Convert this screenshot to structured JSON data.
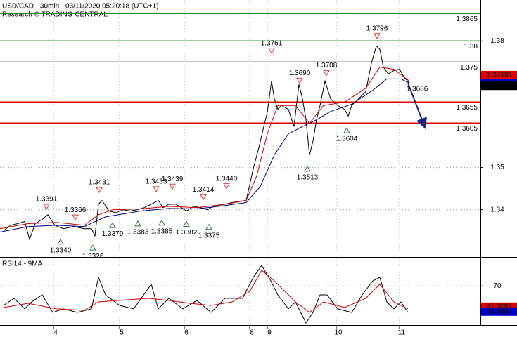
{
  "header": {
    "title": "USD/CAD - 30min - 03/11/2020 05:20:18 (UTC+1)",
    "subtitle": "Research © TRADING CENTRAL"
  },
  "chart_data": [
    {
      "type": "line",
      "xlim": [
        0,
        683
      ],
      "ylim": [
        1.3288,
        1.3897
      ],
      "xticks": [
        {
          "value": 76,
          "label": "4"
        },
        {
          "value": 170,
          "label": "5"
        },
        {
          "value": 262,
          "label": "6"
        },
        {
          "value": 355,
          "label": "8"
        },
        {
          "value": 380,
          "label": "9"
        },
        {
          "value": 478,
          "label": "10"
        },
        {
          "value": 568,
          "label": "11"
        }
      ],
      "yticks": [
        1.34,
        1.35,
        1.38
      ],
      "grid": true,
      "series": [
        {
          "color": "#000000",
          "x": [
            5,
            15,
            25,
            35,
            42,
            50,
            60,
            68,
            78,
            90,
            105,
            120,
            130,
            135,
            140,
            145,
            155,
            165,
            175,
            185,
            195,
            205,
            215,
            225,
            232,
            240,
            250,
            258,
            265,
            275,
            285,
            295,
            300,
            310,
            320,
            330,
            340,
            350,
            360,
            368,
            375,
            380,
            386,
            390,
            395,
            400,
            410,
            418,
            425,
            430,
            435,
            440,
            445,
            450,
            455,
            462,
            470,
            480,
            490,
            495,
            500,
            510,
            520,
            528,
            535,
            540,
            545,
            552,
            560,
            568,
            575,
            582
          ],
          "values": [
            1.335,
            1.3363,
            1.3367,
            1.3372,
            1.333,
            1.3367,
            1.3377,
            1.3388,
            1.3363,
            1.3355,
            1.336,
            1.3355,
            1.3355,
            1.3338,
            1.3413,
            1.3422,
            1.3397,
            1.3393,
            1.34,
            1.3397,
            1.34,
            1.3405,
            1.3413,
            1.3422,
            1.3405,
            1.3413,
            1.3413,
            1.3405,
            1.3397,
            1.3408,
            1.3405,
            1.34,
            1.3405,
            1.341,
            1.3413,
            1.3417,
            1.342,
            1.3422,
            1.3497,
            1.3547,
            1.3597,
            1.363,
            1.3705,
            1.3663,
            1.3638,
            1.3647,
            1.3638,
            1.3597,
            1.3697,
            1.3663,
            1.3613,
            1.353,
            1.3563,
            1.3613,
            1.3647,
            1.3705,
            1.3663,
            1.3647,
            1.3638,
            1.3622,
            1.3647,
            1.3663,
            1.368,
            1.3747,
            1.3788,
            1.378,
            1.3738,
            1.3722,
            1.373,
            1.3733,
            1.3713,
            1.37
          ]
        },
        {
          "color": "#cc0000",
          "x": [
            0,
            40,
            80,
            120,
            140,
            160,
            200,
            240,
            280,
            320,
            350,
            365,
            380,
            395,
            420,
            440,
            460,
            490,
            520,
            540,
            560,
            582
          ],
          "values": [
            1.3355,
            1.3367,
            1.337,
            1.3363,
            1.3388,
            1.34,
            1.3402,
            1.3408,
            1.3405,
            1.3413,
            1.3422,
            1.348,
            1.358,
            1.3647,
            1.3647,
            1.3605,
            1.3647,
            1.3655,
            1.3688,
            1.3738,
            1.3733,
            1.3705
          ]
        },
        {
          "color": "#000080",
          "x": [
            0,
            40,
            80,
            120,
            150,
            200,
            240,
            280,
            320,
            350,
            370,
            390,
            410,
            430,
            450,
            470,
            500,
            530,
            550,
            570,
            582
          ],
          "values": [
            1.3347,
            1.336,
            1.3363,
            1.336,
            1.3383,
            1.3397,
            1.3403,
            1.3402,
            1.341,
            1.3417,
            1.3455,
            1.353,
            1.358,
            1.3597,
            1.3613,
            1.3633,
            1.365,
            1.3683,
            1.371,
            1.371,
            1.37
          ]
        }
      ],
      "forecast": {
        "color": "#1a237e",
        "x": [
          580,
          603
        ],
        "values": [
          1.37,
          1.36
        ]
      },
      "levels": [
        {
          "value": 1.3865,
          "color": "#008000"
        },
        {
          "value": 1.38,
          "color": "#008000"
        },
        {
          "value": 1.375,
          "color": "#000080"
        },
        {
          "value": 1.3655,
          "color": "#e00000"
        },
        {
          "value": 1.3605,
          "color": "#e00000"
        }
      ],
      "annotations": [
        {
          "kind": "peak",
          "x": 66,
          "value": 1.3391
        },
        {
          "kind": "peak",
          "x": 107,
          "value": 1.3366
        },
        {
          "kind": "peak",
          "x": 141,
          "value": 1.3431
        },
        {
          "kind": "peak",
          "x": 222,
          "value": 1.3433
        },
        {
          "kind": "peak",
          "x": 245,
          "value": 1.3439
        },
        {
          "kind": "peak",
          "x": 289,
          "value": 1.3414
        },
        {
          "kind": "peak",
          "x": 322,
          "value": 1.344,
          "label": "1.3440"
        },
        {
          "kind": "peak",
          "x": 386,
          "value": 1.3761
        },
        {
          "kind": "peak",
          "x": 426,
          "value": 1.369,
          "label": "1.3690"
        },
        {
          "kind": "peak",
          "x": 464,
          "value": 1.3708
        },
        {
          "kind": "peak",
          "x": 536,
          "value": 1.3796
        },
        {
          "kind": "trough",
          "x": 86,
          "value": 1.334,
          "label": "1.3340"
        },
        {
          "kind": "trough",
          "x": 132,
          "value": 1.3326
        },
        {
          "kind": "trough",
          "x": 160,
          "value": 1.3379
        },
        {
          "kind": "trough",
          "x": 196,
          "value": 1.3383
        },
        {
          "kind": "trough",
          "x": 230,
          "value": 1.3385
        },
        {
          "kind": "trough",
          "x": 265,
          "value": 1.3382
        },
        {
          "kind": "trough",
          "x": 297,
          "value": 1.3375
        },
        {
          "kind": "trough",
          "x": 437,
          "value": 1.3513
        },
        {
          "kind": "trough",
          "x": 493,
          "value": 1.3604
        },
        {
          "kind": "target",
          "x": 593,
          "value": 1.3686
        }
      ],
      "last_values": [
        {
          "value": 1.37191,
          "color": "#e00000"
        },
        {
          "value": 1.36992,
          "color": "#0000cc"
        },
        {
          "value": 1.36936,
          "color": "#000000"
        }
      ]
    },
    {
      "type": "line",
      "title": "RSI14 - 9MA",
      "xlim": [
        0,
        683
      ],
      "ylim": [
        28,
        100
      ],
      "yticks": [
        70
      ],
      "series": [
        {
          "color": "#000000",
          "x": [
            5,
            20,
            35,
            45,
            60,
            75,
            90,
            110,
            130,
            140,
            150,
            170,
            190,
            215,
            225,
            240,
            260,
            280,
            300,
            320,
            345,
            360,
            372,
            385,
            395,
            410,
            420,
            435,
            445,
            455,
            465,
            480,
            500,
            515,
            530,
            540,
            550,
            560,
            570,
            580
          ],
          "values": [
            48.7,
            56.4,
            44.9,
            52.5,
            60.2,
            41.0,
            44.9,
            41.0,
            44.9,
            79.3,
            60.2,
            48.7,
            44.9,
            71.7,
            44.9,
            56.4,
            44.9,
            54.1,
            41.0,
            56.4,
            56.4,
            79.3,
            92.3,
            75.5,
            60.2,
            44.9,
            52.5,
            29.6,
            41.0,
            60.2,
            60.2,
            44.9,
            41.0,
            60.2,
            75.5,
            79.3,
            52.5,
            44.9,
            52.5,
            41.0
          ]
        },
        {
          "color": "#cc0000",
          "x": [
            5,
            40,
            80,
            120,
            140,
            170,
            210,
            240,
            270,
            300,
            330,
            355,
            372,
            390,
            420,
            440,
            460,
            490,
            520,
            540,
            560,
            580
          ],
          "values": [
            46.4,
            51.0,
            44.9,
            43.3,
            52.5,
            54.1,
            56.4,
            54.1,
            51.0,
            48.7,
            52.5,
            64.0,
            87.0,
            75.5,
            52.5,
            41.0,
            52.5,
            46.4,
            56.4,
            71.7,
            52.5,
            44.9
          ]
        }
      ],
      "last_values": [
        {
          "value": 47.3091,
          "color": "#e00000"
        },
        {
          "value": 41.9558,
          "color": "#0000cc"
        }
      ]
    }
  ]
}
